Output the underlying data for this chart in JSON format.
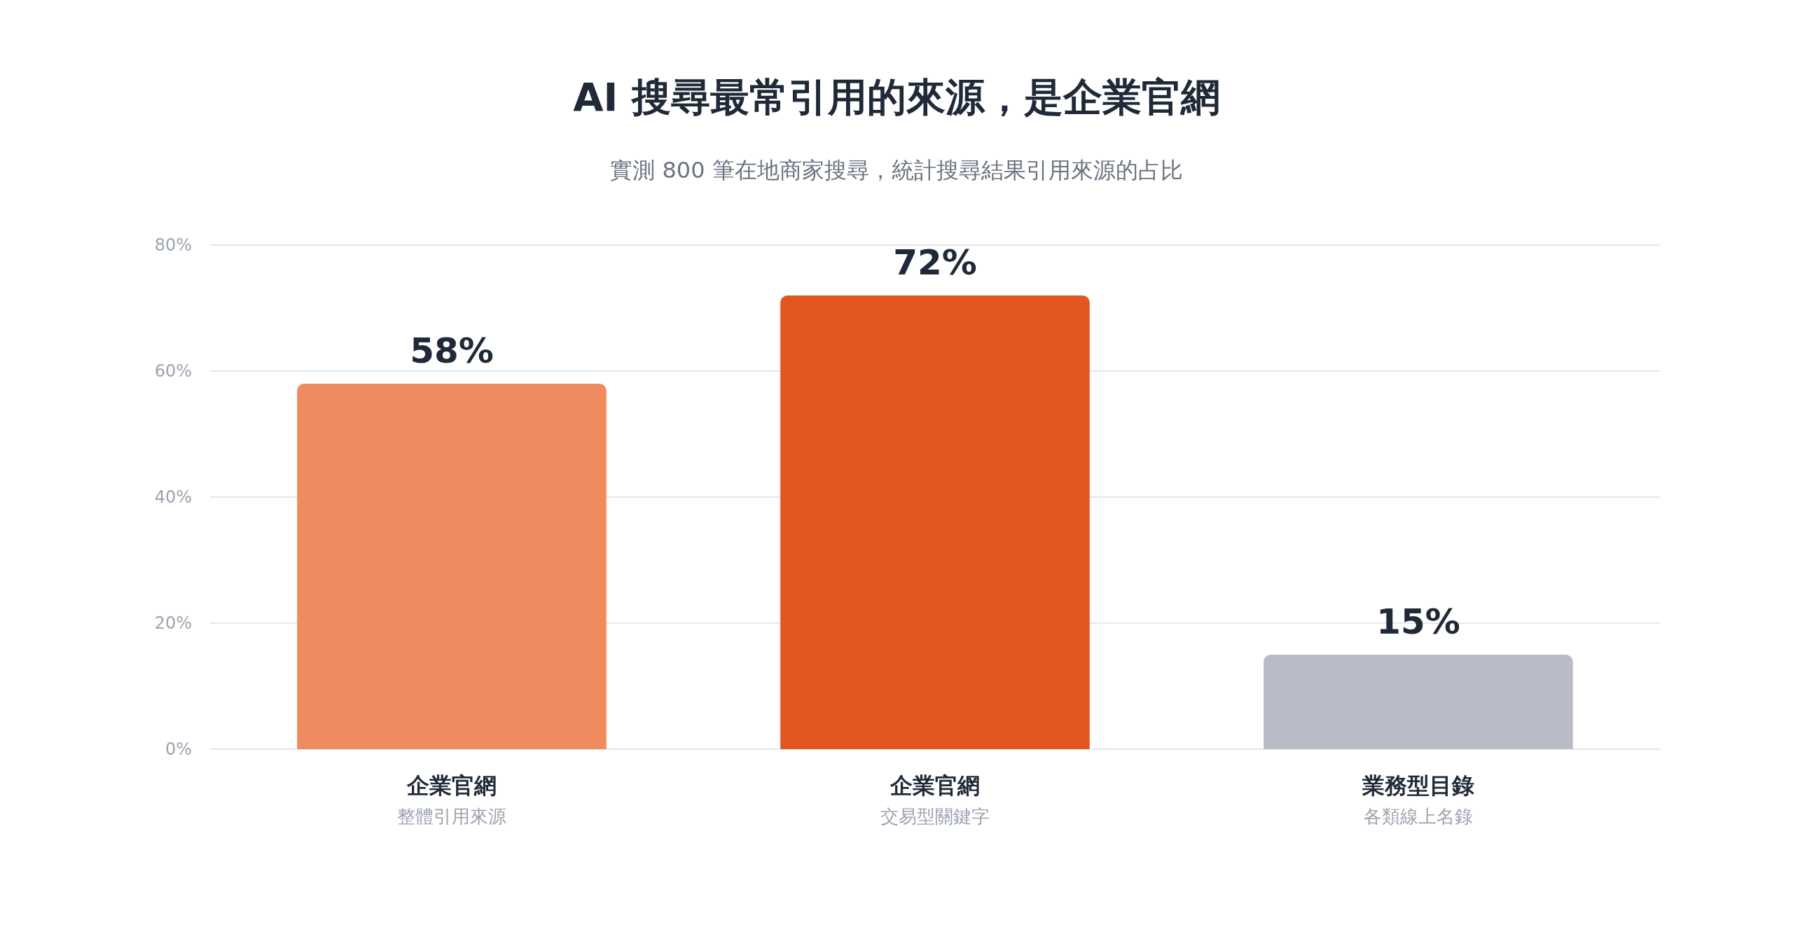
{
  "chart_data": {
    "type": "bar",
    "title": "AI 搜尋最常引用的來源，是企業官網",
    "subtitle": "實測 800 筆在地商家搜尋，統計搜尋結果引用來源的占比",
    "categories": [
      "企業官網",
      "企業官網",
      "業務型目錄"
    ],
    "annotations": [
      "整體引用來源",
      "交易型關鍵字",
      "各類線上名錄"
    ],
    "values": [
      58,
      72,
      15
    ],
    "colors": [
      "#ef8b5f",
      "#e2561f",
      "#b9bcc6"
    ],
    "value_labels": [
      "58%",
      "72%",
      "15%"
    ],
    "ylim": [
      0,
      80
    ],
    "yticks": [
      {
        "value": 0,
        "label": "0%"
      },
      {
        "value": 20,
        "label": "20%"
      },
      {
        "value": 40,
        "label": "40%"
      },
      {
        "value": 60,
        "label": "60%"
      },
      {
        "value": 80,
        "label": "80%"
      }
    ],
    "grid": "y"
  }
}
